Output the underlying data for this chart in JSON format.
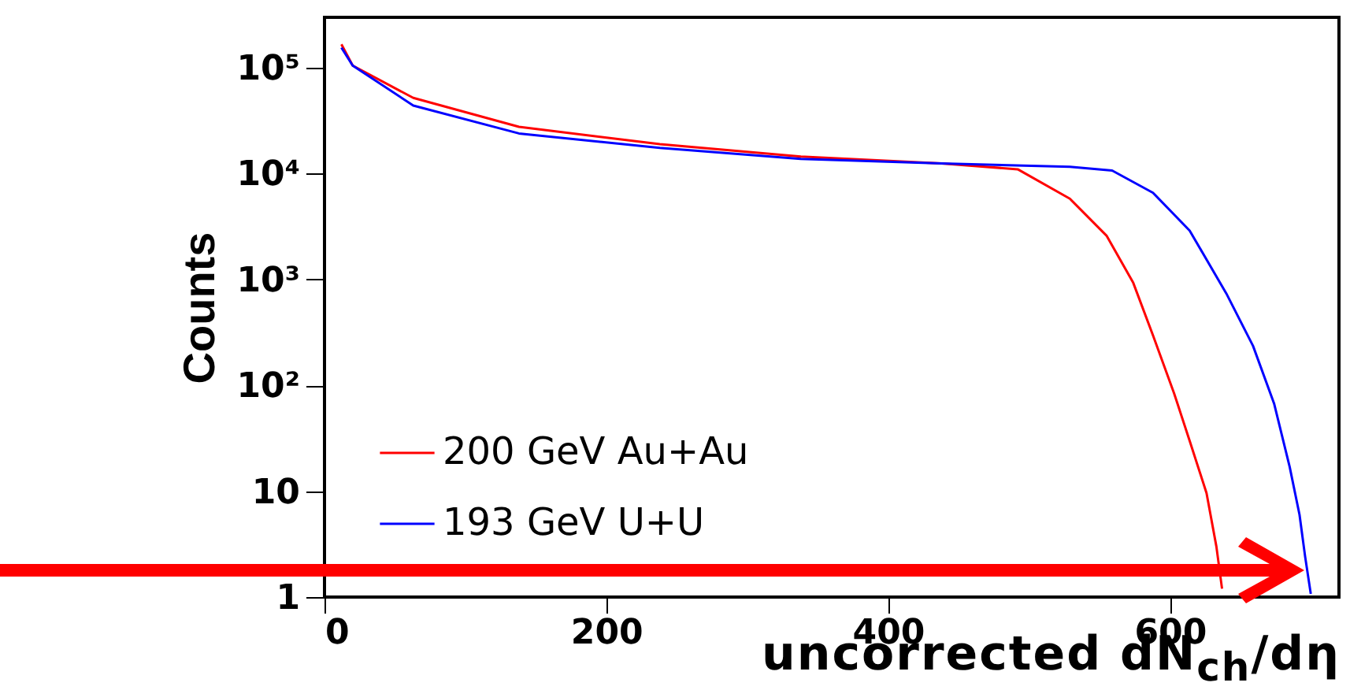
{
  "chart_data": {
    "type": "line",
    "xlabel": "uncorrected dN$_{ch}$/dη",
    "ylabel": "Counts",
    "log": "y",
    "xlim": [
      0,
      720
    ],
    "ylim": [
      1,
      300000
    ],
    "xticks": [
      0,
      200,
      400,
      600
    ],
    "yticks": [
      {
        "value": 1,
        "label": "1"
      },
      {
        "value": 10,
        "label": "10"
      },
      {
        "value": 100,
        "label": "10²"
      },
      {
        "value": 1000,
        "label": "10³"
      },
      {
        "value": 10000,
        "label": "10⁴"
      },
      {
        "value": 100000,
        "label": "10⁵"
      }
    ],
    "grid": false,
    "legend": "bottom left",
    "marker": "none",
    "line_style": "solid",
    "series": [
      {
        "name": "200 GeV Au+Au",
        "color": "#ff0000",
        "x": [
          12,
          20,
          63,
          138,
          238,
          338,
          438,
          492,
          529,
          555,
          574,
          588,
          603,
          614,
          626,
          633,
          637
        ],
        "values": [
          167000,
          105000,
          52000,
          27700,
          19000,
          14500,
          12500,
          11000,
          5800,
          2600,
          930,
          297,
          84,
          30,
          9.6,
          3,
          1.2
        ]
      },
      {
        "name": "193 GeV U+U",
        "color": "#0000ff",
        "x": [
          12,
          20,
          63,
          138,
          238,
          338,
          438,
          529,
          559,
          588,
          614,
          640,
          659,
          674,
          685,
          692,
          696,
          700
        ],
        "values": [
          155000,
          105000,
          44000,
          24000,
          17500,
          13800,
          12500,
          11600,
          10700,
          6600,
          2900,
          740,
          236,
          67,
          17,
          6,
          2.4,
          1.07
        ]
      }
    ]
  }
}
